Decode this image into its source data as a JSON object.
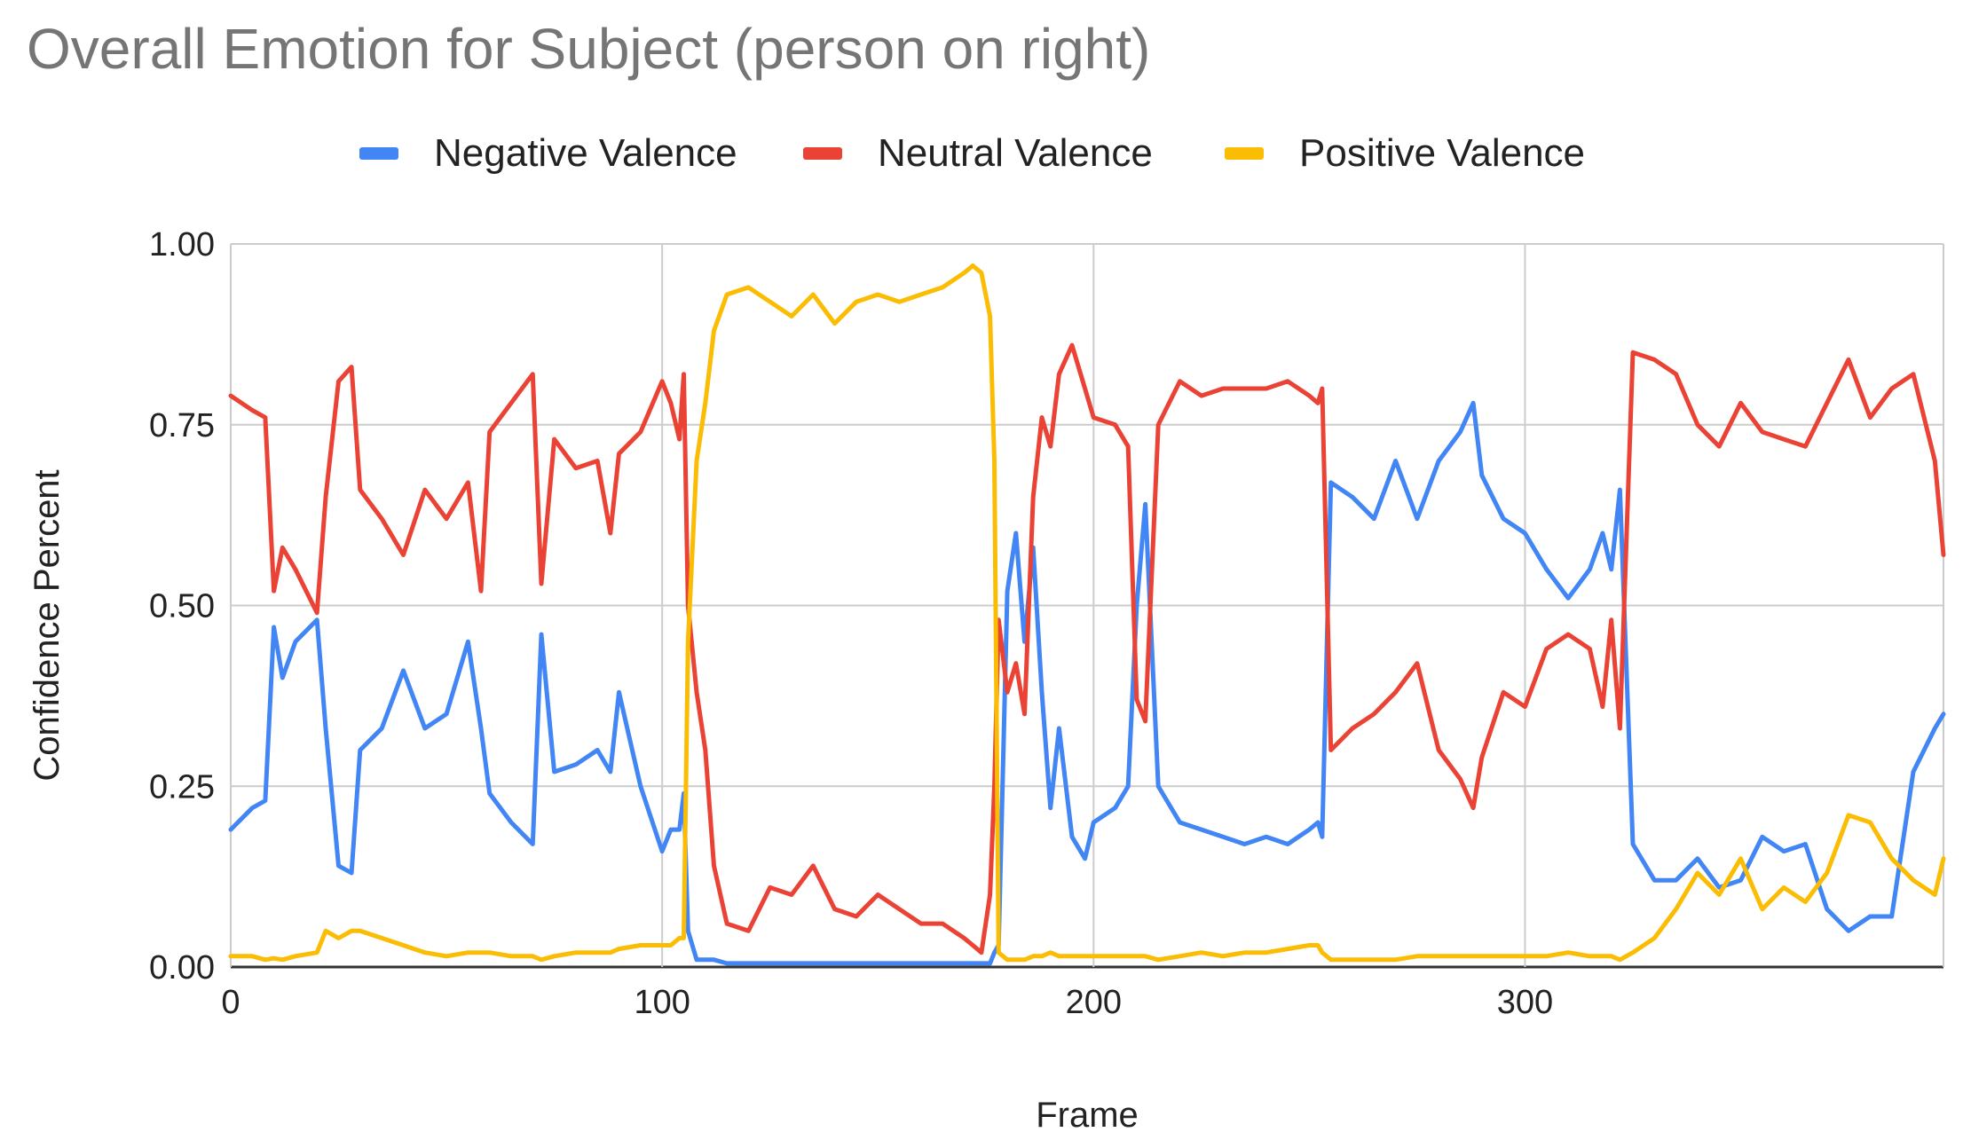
{
  "chart_data": {
    "type": "line",
    "title": "Overall Emotion for Subject (person on right)",
    "xlabel": "Frame",
    "ylabel": "Confidence Percent",
    "xlim": [
      0,
      397
    ],
    "ylim": [
      0,
      1
    ],
    "x_ticks": [
      0,
      100,
      200,
      300
    ],
    "y_ticks": [
      "0.00",
      "0.25",
      "0.50",
      "0.75",
      "1.00"
    ],
    "grid": true,
    "legend_position": "top",
    "x": [
      0,
      5,
      8,
      10,
      12,
      15,
      20,
      22,
      25,
      28,
      30,
      35,
      40,
      45,
      50,
      55,
      58,
      60,
      65,
      70,
      72,
      75,
      80,
      85,
      88,
      90,
      95,
      100,
      102,
      104,
      105,
      106,
      108,
      110,
      112,
      115,
      120,
      125,
      130,
      135,
      140,
      145,
      150,
      155,
      160,
      165,
      170,
      172,
      174,
      176,
      177,
      178,
      180,
      182,
      184,
      186,
      188,
      190,
      192,
      195,
      198,
      200,
      205,
      208,
      210,
      212,
      215,
      220,
      225,
      230,
      235,
      240,
      245,
      250,
      252,
      253,
      255,
      260,
      265,
      270,
      275,
      280,
      285,
      288,
      290,
      295,
      300,
      305,
      310,
      315,
      318,
      320,
      322,
      325,
      330,
      335,
      340,
      345,
      350,
      355,
      360,
      365,
      370,
      375,
      380,
      385,
      390,
      395,
      397
    ],
    "series": [
      {
        "name": "Negative Valence",
        "color": "#4285f4",
        "values": [
          0.19,
          0.22,
          0.23,
          0.47,
          0.4,
          0.45,
          0.48,
          0.33,
          0.14,
          0.13,
          0.3,
          0.33,
          0.41,
          0.33,
          0.35,
          0.45,
          0.33,
          0.24,
          0.2,
          0.17,
          0.46,
          0.27,
          0.28,
          0.3,
          0.27,
          0.38,
          0.25,
          0.16,
          0.19,
          0.19,
          0.24,
          0.05,
          0.01,
          0.01,
          0.01,
          0.005,
          0.005,
          0.005,
          0.005,
          0.005,
          0.005,
          0.005,
          0.005,
          0.005,
          0.005,
          0.005,
          0.005,
          0.005,
          0.005,
          0.005,
          0.02,
          0.03,
          0.52,
          0.6,
          0.45,
          0.58,
          0.38,
          0.22,
          0.33,
          0.18,
          0.15,
          0.2,
          0.22,
          0.25,
          0.5,
          0.64,
          0.25,
          0.2,
          0.19,
          0.18,
          0.17,
          0.18,
          0.17,
          0.19,
          0.2,
          0.18,
          0.67,
          0.65,
          0.62,
          0.7,
          0.62,
          0.7,
          0.74,
          0.78,
          0.68,
          0.62,
          0.6,
          0.55,
          0.51,
          0.55,
          0.6,
          0.55,
          0.66,
          0.17,
          0.12,
          0.12,
          0.15,
          0.11,
          0.12,
          0.18,
          0.16,
          0.17,
          0.08,
          0.05,
          0.07,
          0.07,
          0.27,
          0.33,
          0.35
        ]
      },
      {
        "name": "Neutral Valence",
        "color": "#ea4335",
        "values": [
          0.79,
          0.77,
          0.76,
          0.52,
          0.58,
          0.55,
          0.49,
          0.65,
          0.81,
          0.83,
          0.66,
          0.62,
          0.57,
          0.66,
          0.62,
          0.67,
          0.52,
          0.74,
          0.78,
          0.82,
          0.53,
          0.73,
          0.69,
          0.7,
          0.6,
          0.71,
          0.74,
          0.81,
          0.78,
          0.73,
          0.82,
          0.5,
          0.38,
          0.3,
          0.14,
          0.06,
          0.05,
          0.11,
          0.1,
          0.14,
          0.08,
          0.07,
          0.1,
          0.08,
          0.06,
          0.06,
          0.04,
          0.03,
          0.02,
          0.1,
          0.25,
          0.48,
          0.38,
          0.42,
          0.35,
          0.65,
          0.76,
          0.72,
          0.82,
          0.86,
          0.8,
          0.76,
          0.75,
          0.72,
          0.37,
          0.34,
          0.75,
          0.81,
          0.79,
          0.8,
          0.8,
          0.8,
          0.81,
          0.79,
          0.78,
          0.8,
          0.3,
          0.33,
          0.35,
          0.38,
          0.42,
          0.3,
          0.26,
          0.22,
          0.29,
          0.38,
          0.36,
          0.44,
          0.46,
          0.44,
          0.36,
          0.48,
          0.33,
          0.85,
          0.84,
          0.82,
          0.75,
          0.72,
          0.78,
          0.74,
          0.73,
          0.72,
          0.78,
          0.84,
          0.76,
          0.8,
          0.82,
          0.7,
          0.57
        ]
      },
      {
        "name": "Positive Valence",
        "color": "#fbbc04",
        "values": [
          0.015,
          0.015,
          0.01,
          0.012,
          0.01,
          0.015,
          0.02,
          0.05,
          0.04,
          0.05,
          0.05,
          0.04,
          0.03,
          0.02,
          0.015,
          0.02,
          0.02,
          0.02,
          0.015,
          0.015,
          0.01,
          0.015,
          0.02,
          0.02,
          0.02,
          0.025,
          0.03,
          0.03,
          0.03,
          0.04,
          0.04,
          0.45,
          0.7,
          0.78,
          0.88,
          0.93,
          0.94,
          0.92,
          0.9,
          0.93,
          0.89,
          0.92,
          0.93,
          0.92,
          0.93,
          0.94,
          0.96,
          0.97,
          0.96,
          0.9,
          0.7,
          0.02,
          0.01,
          0.01,
          0.01,
          0.015,
          0.015,
          0.02,
          0.015,
          0.015,
          0.015,
          0.015,
          0.015,
          0.015,
          0.015,
          0.015,
          0.01,
          0.015,
          0.02,
          0.015,
          0.02,
          0.02,
          0.025,
          0.03,
          0.03,
          0.02,
          0.01,
          0.01,
          0.01,
          0.01,
          0.015,
          0.015,
          0.015,
          0.015,
          0.015,
          0.015,
          0.015,
          0.015,
          0.02,
          0.015,
          0.015,
          0.015,
          0.01,
          0.02,
          0.04,
          0.08,
          0.13,
          0.1,
          0.15,
          0.08,
          0.11,
          0.09,
          0.13,
          0.21,
          0.2,
          0.15,
          0.12,
          0.1,
          0.15
        ]
      }
    ]
  }
}
